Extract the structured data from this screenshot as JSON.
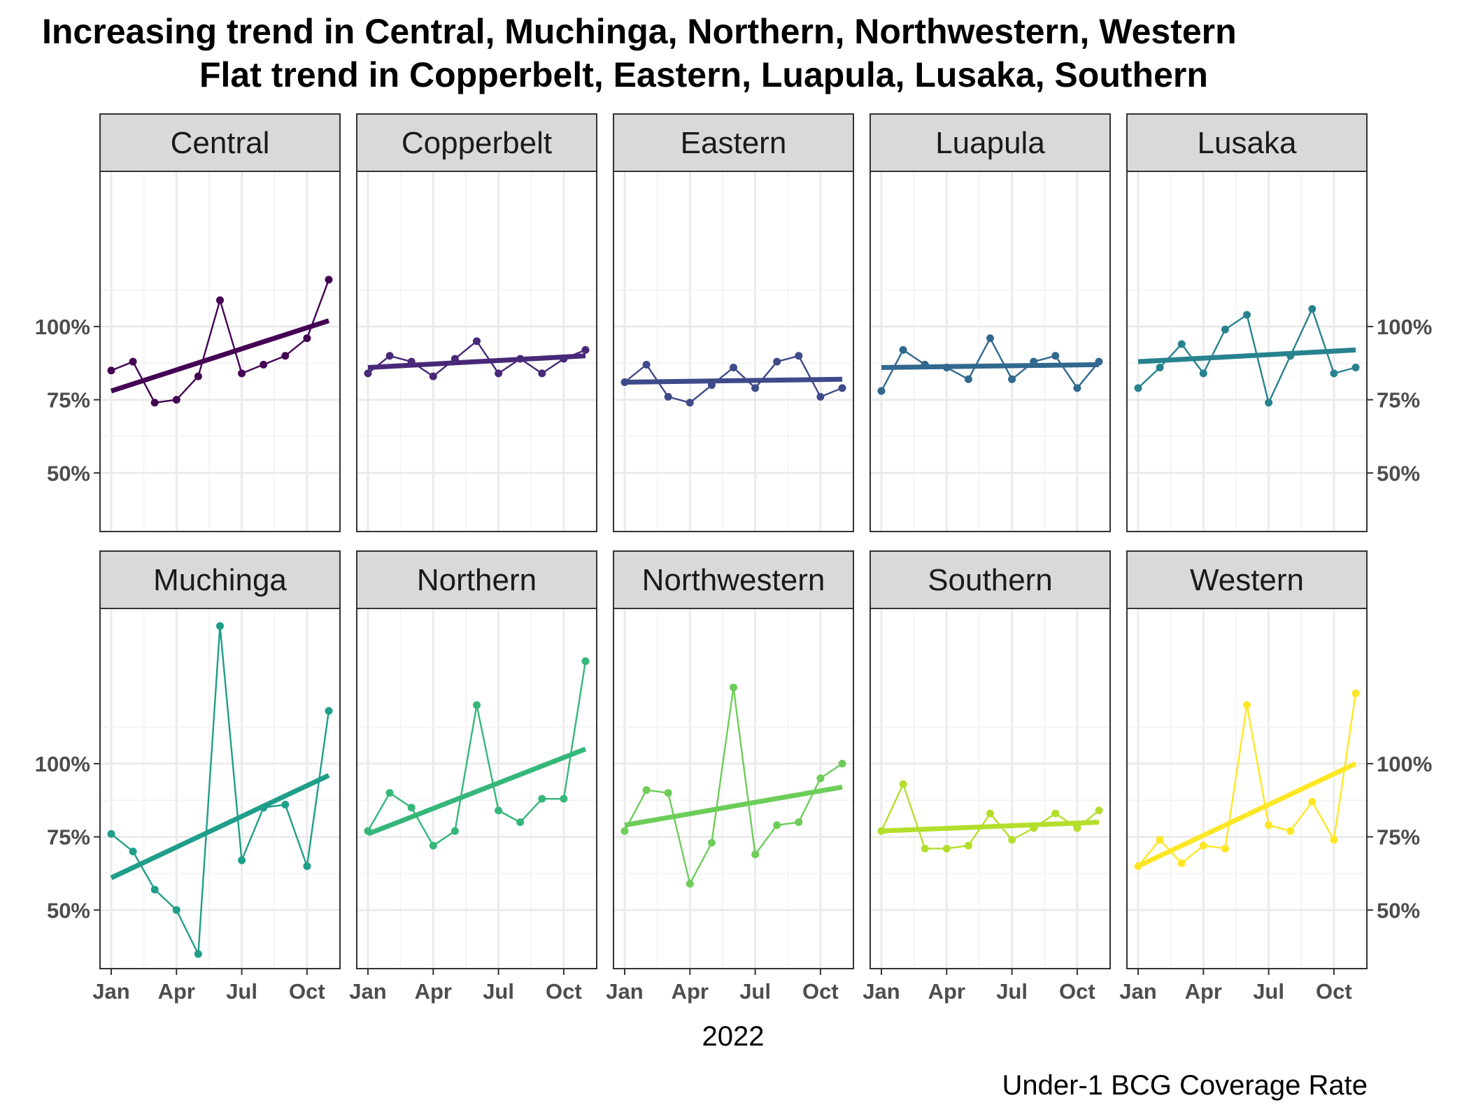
{
  "title_lines": [
    "Increasing trend in Central, Muchinga, Northern, Northwestern, Western",
    "Flat trend in Copperbelt, Eastern, Luapula, Lusaka, Southern"
  ],
  "xlabel": "2022",
  "caption": "Under-1 BCG Coverage Rate",
  "chart_data": {
    "type": "line",
    "title": "Increasing trend in Central, Muchinga, Northern, Northwestern, Western / Flat trend in Copperbelt, Eastern, Luapula, Lusaka, Southern",
    "xlabel": "2022",
    "ylabel": "",
    "caption": "Under-1 BCG Coverage Rate",
    "x": [
      "2022-01",
      "2022-02",
      "2022-03",
      "2022-04",
      "2022-05",
      "2022-06",
      "2022-07",
      "2022-08",
      "2022-09",
      "2022-10",
      "2022-11"
    ],
    "x_ticks": [
      "Jan",
      "Apr",
      "Jul",
      "Oct"
    ],
    "x_tick_index": [
      0,
      3,
      6,
      9
    ],
    "y_ticks": [
      50,
      75,
      100
    ],
    "y_tick_labels": [
      "50%",
      "75%",
      "100%"
    ],
    "facet_rows": [
      {
        "ylim": [
          30,
          153
        ],
        "axis_sides": [
          "left",
          "right"
        ]
      },
      {
        "ylim": [
          30,
          153
        ],
        "axis_sides": [
          "left",
          "right"
        ]
      }
    ],
    "grid": true,
    "legend": "none",
    "trend_lines": "linear fit per panel",
    "series": [
      {
        "name": "Central",
        "row": 0,
        "col": 0,
        "color": "#440154",
        "values": [
          85,
          88,
          74,
          75,
          83,
          109,
          84,
          87,
          90,
          96,
          116
        ],
        "trend": [
          78,
          102
        ]
      },
      {
        "name": "Copperbelt",
        "row": 0,
        "col": 1,
        "color": "#482878",
        "values": [
          84,
          90,
          88,
          83,
          89,
          95,
          84,
          89,
          84,
          89,
          92
        ],
        "trend": [
          86,
          90
        ]
      },
      {
        "name": "Eastern",
        "row": 0,
        "col": 2,
        "color": "#3E4A89",
        "values": [
          81,
          87,
          76,
          74,
          80,
          86,
          79,
          88,
          90,
          76,
          79
        ],
        "trend": [
          81,
          82
        ]
      },
      {
        "name": "Luapula",
        "row": 0,
        "col": 3,
        "color": "#31688E",
        "values": [
          78,
          92,
          87,
          86,
          82,
          96,
          82,
          88,
          90,
          79,
          88
        ],
        "trend": [
          86,
          87
        ]
      },
      {
        "name": "Lusaka",
        "row": 0,
        "col": 4,
        "color": "#26828E",
        "values": [
          79,
          86,
          94,
          84,
          99,
          104,
          74,
          90,
          106,
          84,
          86
        ],
        "trend": [
          88,
          92
        ]
      },
      {
        "name": "Muchinga",
        "row": 1,
        "col": 0,
        "color": "#1F9E89",
        "values": [
          76,
          70,
          57,
          50,
          35,
          147,
          67,
          85,
          86,
          65,
          118
        ],
        "trend": [
          61,
          96
        ]
      },
      {
        "name": "Northern",
        "row": 1,
        "col": 1,
        "color": "#35B779",
        "values": [
          77,
          90,
          85,
          72,
          77,
          120,
          84,
          80,
          88,
          88,
          135
        ],
        "trend": [
          76,
          105
        ]
      },
      {
        "name": "Northwestern",
        "row": 1,
        "col": 2,
        "color": "#6DCD59",
        "values": [
          77,
          91,
          90,
          59,
          73,
          126,
          69,
          79,
          80,
          95,
          100
        ],
        "trend": [
          79,
          92
        ]
      },
      {
        "name": "Southern",
        "row": 1,
        "col": 3,
        "color": "#B4DE2C",
        "values": [
          77,
          93,
          71,
          71,
          72,
          83,
          74,
          78,
          83,
          78,
          84
        ],
        "trend": [
          77,
          80
        ]
      },
      {
        "name": "Western",
        "row": 1,
        "col": 4,
        "color": "#FDE725",
        "values": [
          65,
          74,
          66,
          72,
          71,
          120,
          79,
          77,
          87,
          74,
          124
        ],
        "trend": [
          65,
          100
        ]
      }
    ]
  }
}
